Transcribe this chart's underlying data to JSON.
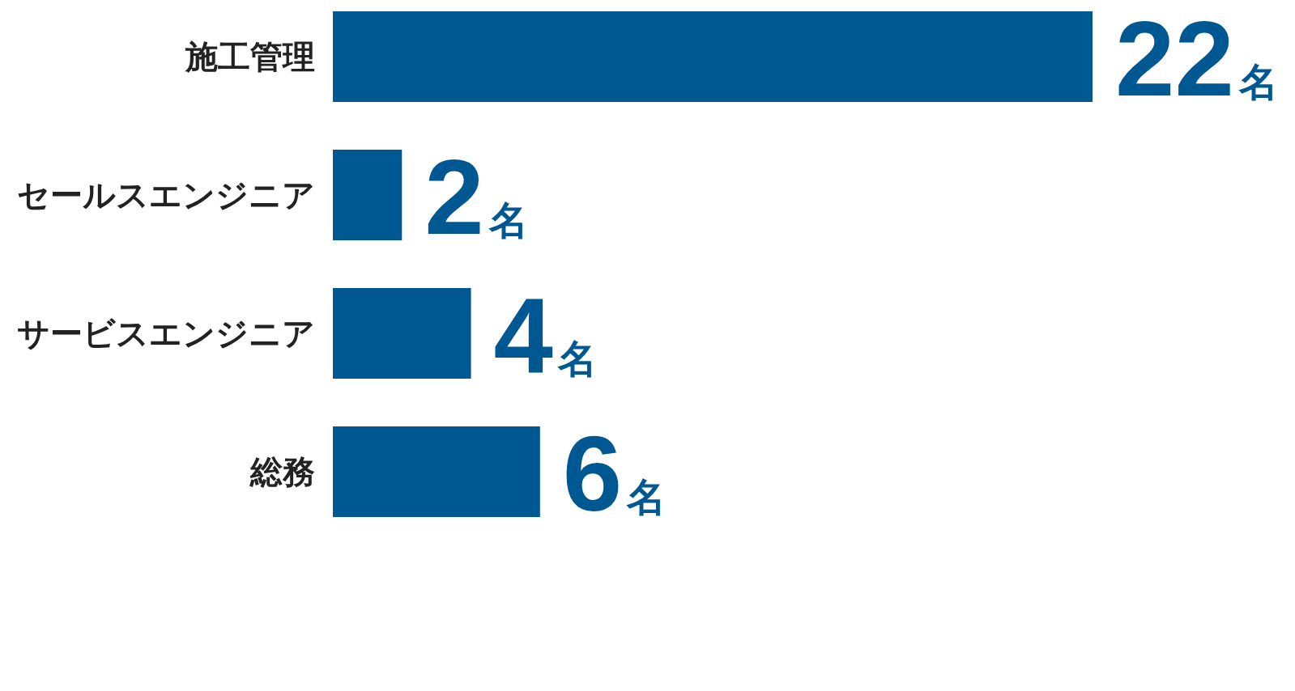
{
  "chart_data": {
    "type": "bar",
    "orientation": "horizontal",
    "categories": [
      "施工管理",
      "セールスエンジニア",
      "サービスエンジニア",
      "総務"
    ],
    "values": [
      22,
      2,
      4,
      6
    ],
    "color": "#005892",
    "value_labels": [
      "22名",
      "2名",
      "4名",
      "6名"
    ]
  }
}
